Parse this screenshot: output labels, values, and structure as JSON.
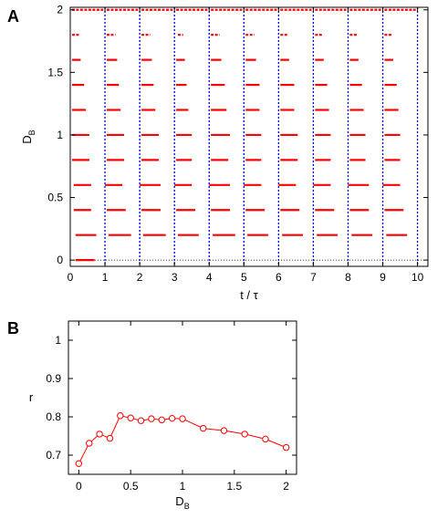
{
  "panels": {
    "a": {
      "label": "A"
    },
    "b": {
      "label": "B"
    }
  },
  "colors": {
    "data": "#ff0000",
    "grid": "#0000cc",
    "axis": "#000000"
  },
  "chart_data": [
    {
      "type": "scatter",
      "panel": "A",
      "xlabel": "t / τ",
      "ylabel": "D",
      "ylabel_subscript": "B",
      "xlim": [
        0,
        10.3
      ],
      "ylim": [
        -0.05,
        2.02
      ],
      "xticks": [
        "0",
        "1",
        "2",
        "3",
        "4",
        "5",
        "6",
        "7",
        "8",
        "9",
        "10"
      ],
      "yticks": [
        "0",
        "0.5",
        "1",
        "1.5",
        "2"
      ],
      "vertical_lines_x": [
        1,
        2,
        3,
        4,
        5,
        6,
        7,
        8,
        9,
        10
      ],
      "rows": [
        {
          "D_B": 0.0,
          "segments": [
            [
              0.15,
              0.7
            ]
          ]
        },
        {
          "D_B": 0.2,
          "segments": [
            [
              0.15,
              0.75
            ],
            [
              1.1,
              1.75
            ],
            [
              2.1,
              2.75
            ],
            [
              3.1,
              3.7
            ],
            [
              4.1,
              4.75
            ],
            [
              5.1,
              5.7
            ],
            [
              6.1,
              6.7
            ],
            [
              7.1,
              7.7
            ],
            [
              8.1,
              8.7
            ],
            [
              9.1,
              9.7
            ]
          ]
        },
        {
          "D_B": 0.4,
          "segments": [
            [
              0.1,
              0.6
            ],
            [
              1.05,
              1.6
            ],
            [
              2.05,
              2.6
            ],
            [
              3.05,
              3.6
            ],
            [
              4.05,
              4.6
            ],
            [
              5.05,
              5.6
            ],
            [
              6.05,
              6.6
            ],
            [
              7.05,
              7.6
            ],
            [
              8.05,
              8.6
            ],
            [
              9.05,
              9.6
            ]
          ]
        },
        {
          "D_B": 0.6,
          "segments": [
            [
              0.1,
              0.6
            ],
            [
              1.0,
              1.5
            ],
            [
              2.0,
              2.6
            ],
            [
              3.0,
              3.5
            ],
            [
              4.0,
              4.6
            ],
            [
              5.0,
              5.5
            ],
            [
              6.0,
              6.5
            ],
            [
              7.0,
              7.5
            ],
            [
              8.0,
              8.6
            ],
            [
              9.0,
              9.5
            ]
          ]
        },
        {
          "D_B": 0.8,
          "segments": [
            [
              0.05,
              0.55
            ],
            [
              1.05,
              1.55
            ],
            [
              2.05,
              2.55
            ],
            [
              3.05,
              3.5
            ],
            [
              4.05,
              4.55
            ],
            [
              5.05,
              5.5
            ],
            [
              6.05,
              6.55
            ],
            [
              7.05,
              7.5
            ],
            [
              8.05,
              8.5
            ],
            [
              9.05,
              9.5
            ]
          ]
        },
        {
          "D_B": 1.0,
          "segments": [
            [
              0.05,
              0.55
            ],
            [
              1.05,
              1.55
            ],
            [
              2.05,
              2.55
            ],
            [
              3.05,
              3.5
            ],
            [
              4.05,
              4.6
            ],
            [
              5.05,
              5.5
            ],
            [
              6.05,
              6.55
            ],
            [
              7.05,
              7.5
            ],
            [
              8.05,
              8.5
            ],
            [
              9.05,
              9.5
            ]
          ]
        },
        {
          "D_B": 1.2,
          "segments": [
            [
              0.05,
              0.45
            ],
            [
              1.05,
              1.45
            ],
            [
              2.05,
              2.45
            ],
            [
              3.05,
              3.4
            ],
            [
              4.05,
              4.5
            ],
            [
              5.05,
              5.45
            ],
            [
              6.05,
              6.45
            ],
            [
              7.05,
              7.45
            ],
            [
              8.05,
              8.45
            ],
            [
              9.05,
              9.45
            ]
          ]
        },
        {
          "D_B": 1.4,
          "segments": [
            [
              0.05,
              0.4
            ],
            [
              1.05,
              1.4
            ],
            [
              2.05,
              2.4
            ],
            [
              3.05,
              3.35
            ],
            [
              4.05,
              4.45
            ],
            [
              5.05,
              5.45
            ],
            [
              6.05,
              6.45
            ],
            [
              7.05,
              7.4
            ],
            [
              8.05,
              8.4
            ],
            [
              9.05,
              9.4
            ]
          ]
        },
        {
          "D_B": 1.6,
          "segments": [
            [
              0.05,
              0.3
            ],
            [
              1.05,
              1.35
            ],
            [
              2.05,
              2.35
            ],
            [
              3.05,
              3.3
            ],
            [
              4.05,
              4.35
            ],
            [
              5.05,
              5.35
            ],
            [
              6.05,
              6.3
            ],
            [
              7.05,
              7.3
            ],
            [
              8.05,
              8.3
            ],
            [
              9.05,
              9.3
            ]
          ]
        },
        {
          "D_B": 1.8,
          "segments": [
            [
              0.05,
              0.25
            ],
            [
              1.05,
              1.3
            ],
            [
              2.05,
              2.3
            ],
            [
              3.1,
              3.25
            ],
            [
              4.05,
              4.3
            ],
            [
              5.05,
              5.3
            ],
            [
              6.05,
              6.25
            ],
            [
              7.05,
              7.25
            ],
            [
              8.05,
              8.25
            ],
            [
              9.05,
              9.25
            ]
          ]
        },
        {
          "D_B": 2.0,
          "segments": [
            [
              0.05,
              0.95
            ],
            [
              1.05,
              1.95
            ],
            [
              2.05,
              2.95
            ],
            [
              3.05,
              3.95
            ],
            [
              4.05,
              4.95
            ],
            [
              5.05,
              5.95
            ],
            [
              6.05,
              6.95
            ],
            [
              7.05,
              7.95
            ],
            [
              8.05,
              8.95
            ],
            [
              9.05,
              9.95
            ]
          ]
        }
      ]
    },
    {
      "type": "line",
      "panel": "B",
      "xlabel": "D",
      "xlabel_subscript": "B",
      "ylabel": "r",
      "xlim": [
        -0.1,
        2.1
      ],
      "ylim": [
        0.65,
        1.05
      ],
      "xticks": [
        "0",
        "0.5",
        "1",
        "1.5",
        "2"
      ],
      "yticks": [
        "0.7",
        "0.8",
        "0.9",
        "1"
      ],
      "x": [
        0,
        0.1,
        0.2,
        0.3,
        0.4,
        0.5,
        0.6,
        0.7,
        0.8,
        0.9,
        1.0,
        1.2,
        1.4,
        1.6,
        1.8,
        2.0
      ],
      "y": [
        0.678,
        0.731,
        0.755,
        0.744,
        0.803,
        0.797,
        0.79,
        0.795,
        0.792,
        0.796,
        0.795,
        0.77,
        0.764,
        0.755,
        0.742,
        0.72
      ],
      "marker": "circle-open"
    }
  ]
}
